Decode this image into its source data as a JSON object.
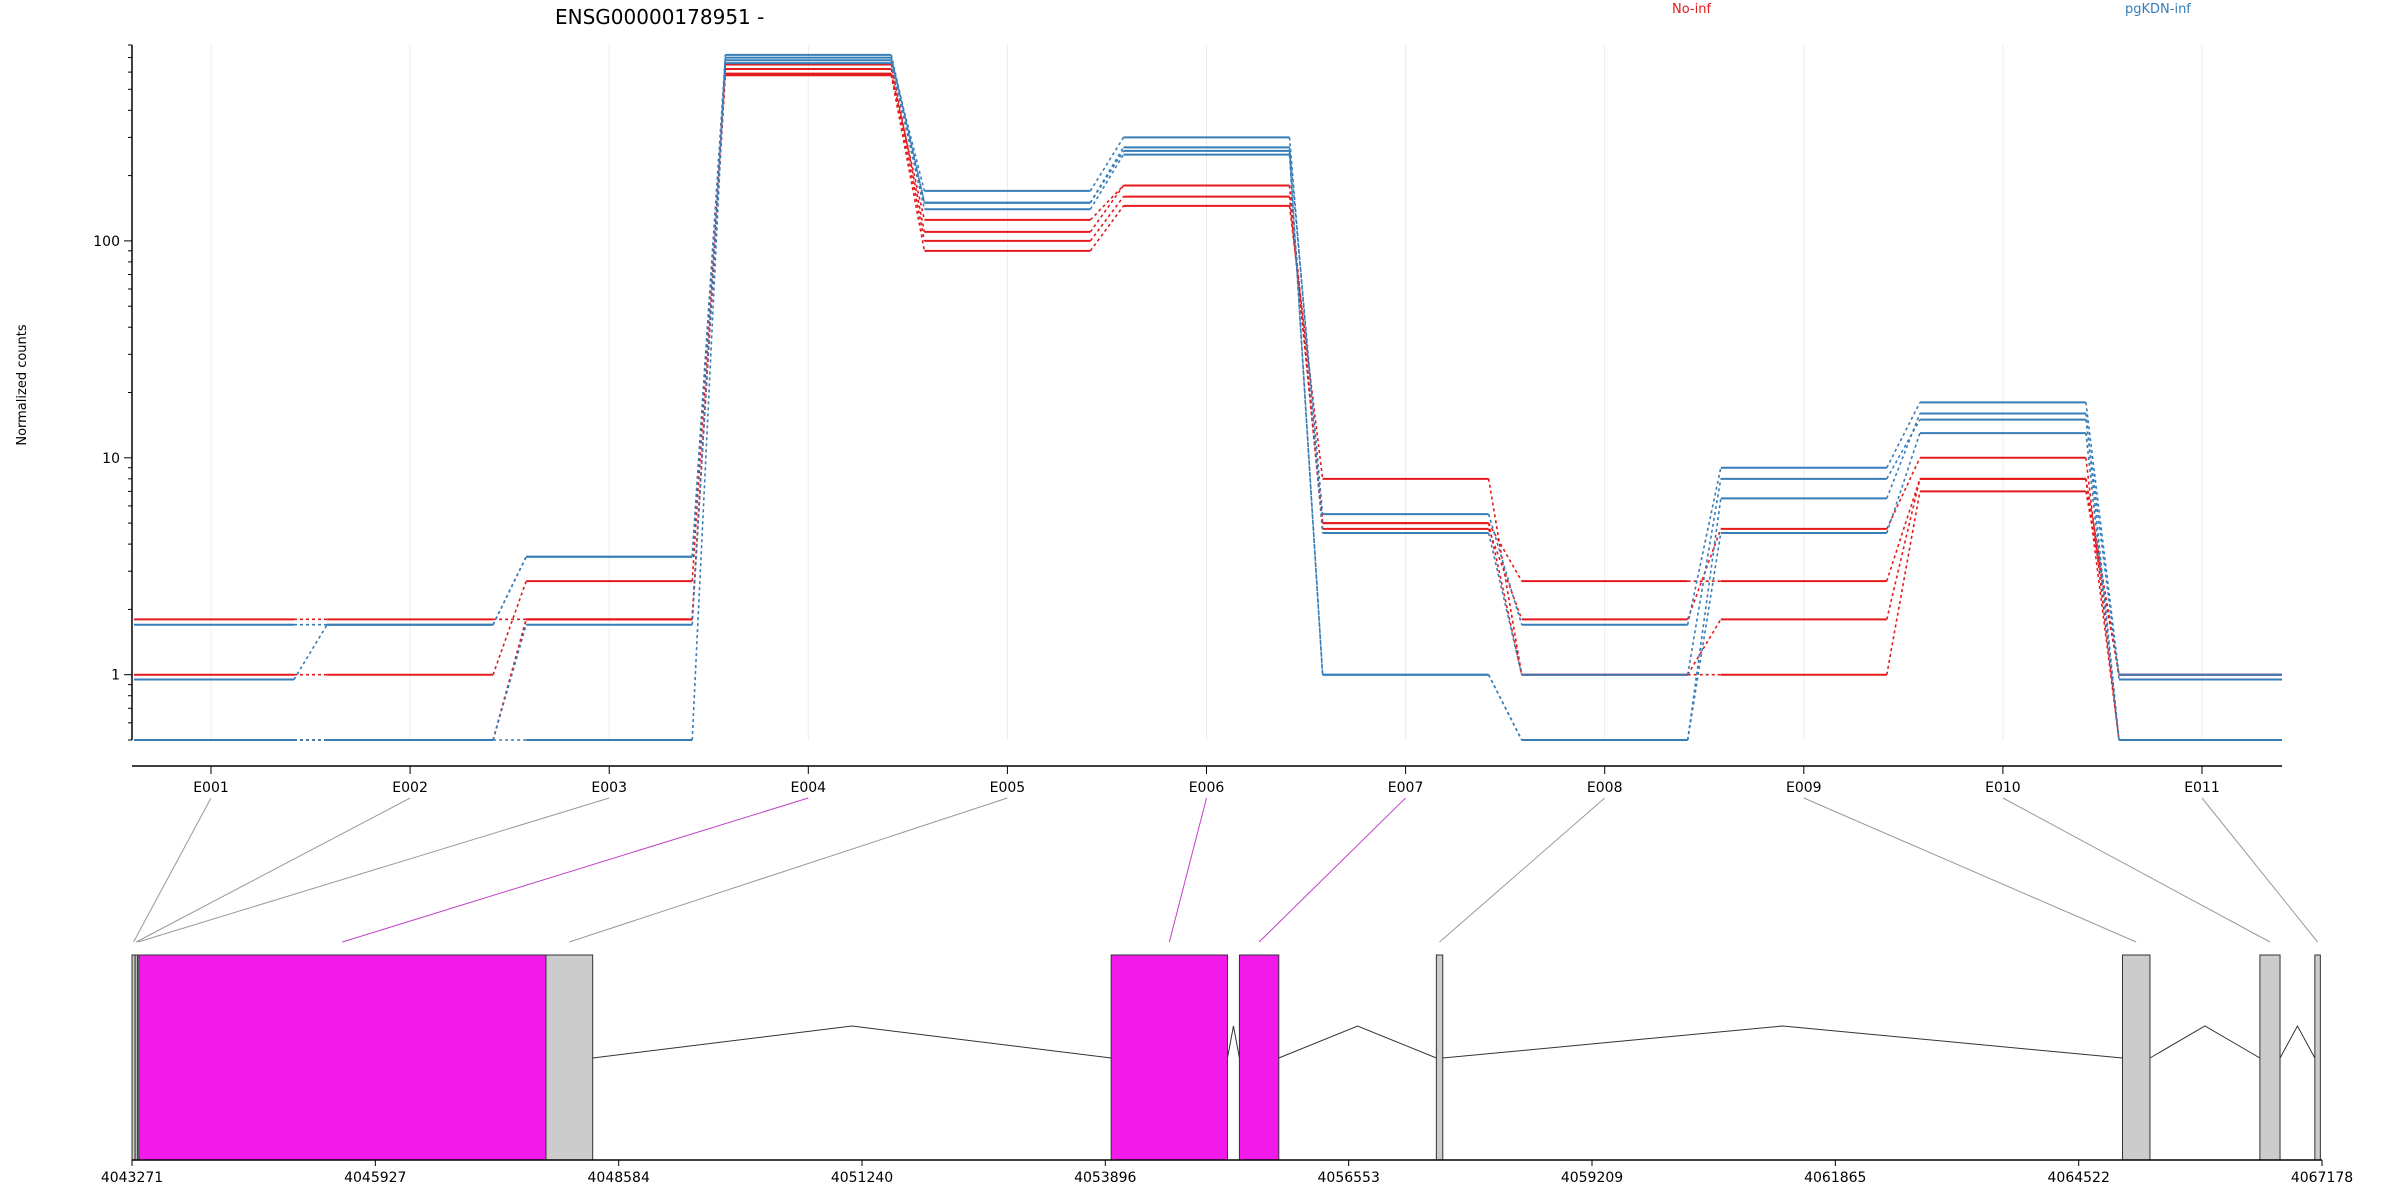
{
  "chart_data": {
    "type": "line",
    "title": "ENSG00000178951 -",
    "ylabel": "Normalized counts",
    "xlabel": "",
    "yscale": "log",
    "ylim": [
      0.5,
      800
    ],
    "y_ticks": [
      {
        "value": 1,
        "label": "1"
      },
      {
        "value": 10,
        "label": "10"
      },
      {
        "value": 100,
        "label": "100"
      }
    ],
    "grid": true,
    "legend_placement": "top",
    "legend": [
      {
        "name": "No-inf",
        "color": "#e41a1c"
      },
      {
        "name": "pgKDN-inf",
        "color": "#377eb8"
      }
    ],
    "categories": [
      "E001",
      "E002",
      "E003",
      "E004",
      "E005",
      "E006",
      "E007",
      "E008",
      "E009",
      "E010",
      "E011"
    ],
    "series": [
      {
        "name": "No-inf",
        "color": "#e41a1c",
        "values": [
          1.8,
          1.8,
          1.8,
          580,
          90,
          145,
          8,
          1,
          1,
          7,
          1
        ]
      },
      {
        "name": "No-inf",
        "color": "#e41a1c",
        "values": [
          1,
          1,
          2.7,
          620,
          100,
          160,
          5,
          1,
          1.8,
          8,
          1
        ]
      },
      {
        "name": "No-inf",
        "color": "#e41a1c",
        "values": [
          0.5,
          0.5,
          1.8,
          650,
          110,
          180,
          5,
          2.7,
          2.7,
          8,
          0.5
        ]
      },
      {
        "name": "No-inf",
        "color": "#e41a1c",
        "values": [
          0.5,
          0.5,
          1.8,
          590,
          125,
          180,
          4.7,
          1.8,
          4.7,
          10,
          0.5
        ]
      },
      {
        "name": "pgKDN-inf",
        "color": "#377eb8",
        "values": [
          1.7,
          1.7,
          3.5,
          700,
          150,
          270,
          5.5,
          1.7,
          9,
          18,
          1
        ]
      },
      {
        "name": "pgKDN-inf",
        "color": "#377eb8",
        "values": [
          0.95,
          1.7,
          3.5,
          680,
          170,
          300,
          4.5,
          1,
          8,
          15,
          0.95
        ]
      },
      {
        "name": "pgKDN-inf",
        "color": "#377eb8",
        "values": [
          0.5,
          0.5,
          1.7,
          660,
          140,
          250,
          1,
          0.5,
          6.5,
          16,
          0.5
        ]
      },
      {
        "name": "pgKDN-inf",
        "color": "#377eb8",
        "values": [
          0.5,
          0.5,
          0.5,
          720,
          150,
          260,
          1,
          0.5,
          4.5,
          13,
          0.5
        ]
      }
    ],
    "gene_model": {
      "coord_ticks": [
        "4043271",
        "4045927",
        "4048584",
        "4051240",
        "4053896",
        "4056553",
        "4059209",
        "4061865",
        "4064522",
        "4067178"
      ],
      "range": [
        4043271,
        4067178
      ],
      "exons": [
        {
          "bin": "E001",
          "start": 4043271,
          "end": 4043305,
          "color": "#cccccc"
        },
        {
          "bin": "E002",
          "start": 4043305,
          "end": 4043330,
          "color": "#cccccc"
        },
        {
          "bin": "E003",
          "start": 4043330,
          "end": 4043345,
          "color": "#cccccc"
        },
        {
          "bin": "E004",
          "start": 4043345,
          "end": 4047790,
          "color": "#f21aea"
        },
        {
          "bin": "E005",
          "start": 4047790,
          "end": 4048300,
          "color": "#cccccc"
        },
        {
          "bin": "E006",
          "start": 4053960,
          "end": 4055230,
          "color": "#f21aea"
        },
        {
          "bin": "E007",
          "start": 4055360,
          "end": 4055790,
          "color": "#f21aea"
        },
        {
          "bin": "E008",
          "start": 4057510,
          "end": 4057580,
          "color": "#cccccc"
        },
        {
          "bin": "E009",
          "start": 4065000,
          "end": 4065300,
          "color": "#cccccc"
        },
        {
          "bin": "E010",
          "start": 4066500,
          "end": 4066720,
          "color": "#cccccc"
        },
        {
          "bin": "E011",
          "start": 4067100,
          "end": 4067160,
          "color": "#cccccc"
        }
      ]
    }
  }
}
